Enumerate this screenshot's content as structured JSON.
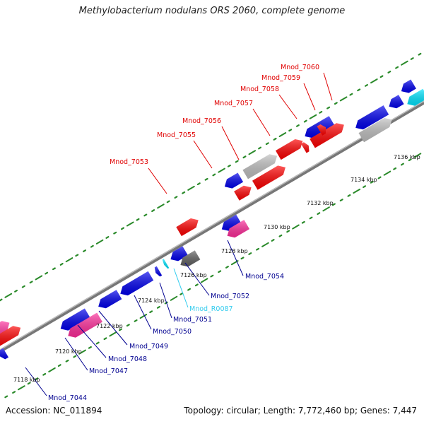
{
  "title": "Methylobacterium nodulans ORS 2060, complete genome",
  "accession": "Accession: NC_011894",
  "summary": "Topology: circular; Length: 7,772,460 bp; Genes: 7,447",
  "colors": {
    "red": "#ff0000",
    "blue": "#0000ee",
    "gray": "#c0c0c0",
    "darkgray": "#606060",
    "pink": "#ff2d9b",
    "cyan": "#00e5ff",
    "green": "#1a8c1a",
    "labelRed": "#e00000",
    "labelBlue": "#000090",
    "labelCyan": "#33ccee"
  },
  "kbp_labels": [
    "7118 kbp",
    "7120 kbp",
    "7122 kbp",
    "7124 kbp",
    "7126 kbp",
    "7128 kbp",
    "7130 kbp",
    "7132 kbp",
    "7134 kbp",
    "7136 kbp"
  ],
  "red_labels": [
    "Mnod_7053",
    "Mnod_7055",
    "Mnod_7056",
    "Mnod_7057",
    "Mnod_7058",
    "Mnod_7059",
    "Mnod_7060"
  ],
  "blue_labels": [
    "Mnod_7044",
    "Mnod_7047",
    "Mnod_7048",
    "Mnod_7049",
    "Mnod_7050",
    "Mnod_7051",
    "Mnod_R0087",
    "Mnod_7052",
    "Mnod_7054"
  ]
}
